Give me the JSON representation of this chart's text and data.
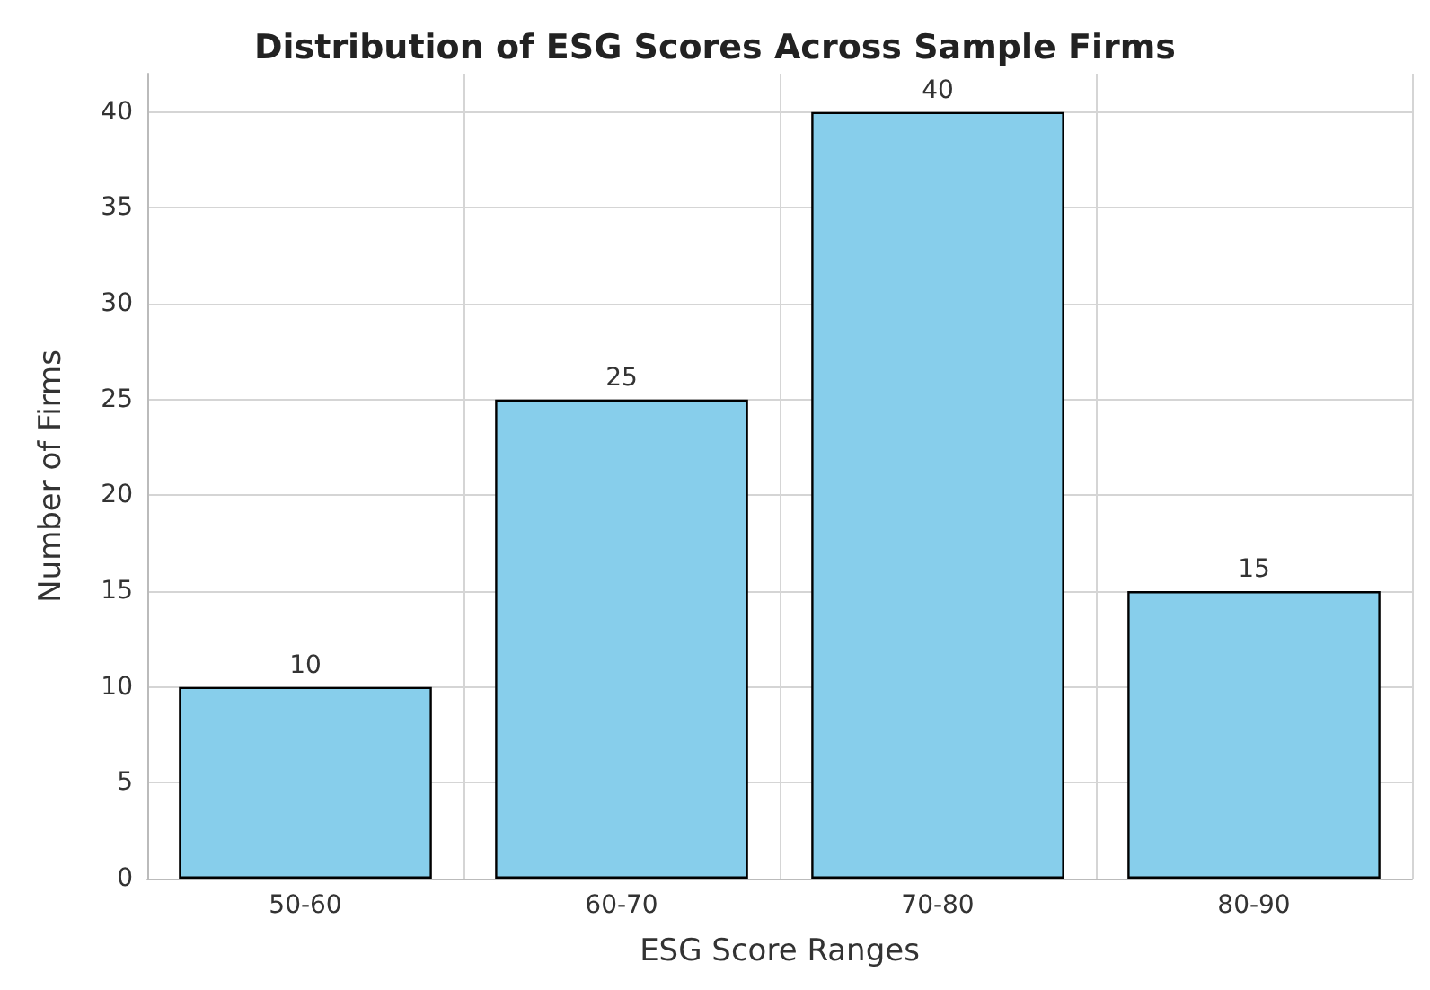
{
  "chart_data": {
    "type": "bar",
    "title": "Distribution of ESG Scores Across Sample Firms",
    "xlabel": "ESG Score Ranges",
    "ylabel": "Number of Firms",
    "categories": [
      "50-60",
      "60-70",
      "70-80",
      "80-90"
    ],
    "values": [
      10,
      25,
      40,
      15
    ],
    "color": "#87ceeb",
    "ylim": [
      0,
      42
    ],
    "yticks": [
      0,
      5,
      10,
      15,
      20,
      25,
      30,
      35,
      40
    ],
    "grid": true,
    "data_labels": true
  }
}
